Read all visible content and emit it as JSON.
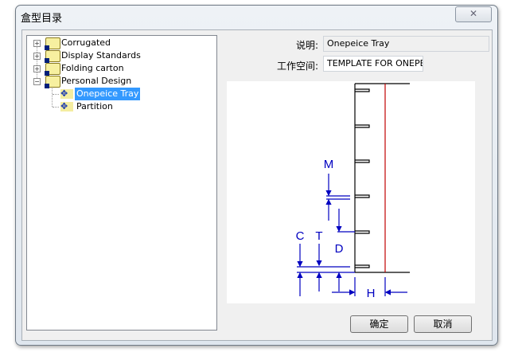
{
  "window": {
    "title": "盒型目录",
    "close_icon": "close-icon"
  },
  "tree": {
    "items": [
      {
        "label": "Corrugated",
        "expanded": false
      },
      {
        "label": "Display Standards",
        "expanded": false
      },
      {
        "label": "Folding carton",
        "expanded": false
      },
      {
        "label": "Personal Design",
        "expanded": true,
        "children": [
          {
            "label": "Onepeice Tray",
            "selected": true
          },
          {
            "label": "Partition"
          }
        ]
      }
    ]
  },
  "form": {
    "desc_label": "说明:",
    "desc_value": "Onepeice Tray",
    "workspace_label": "工作空间:",
    "workspace_value": "TEMPLATE FOR ONEPEIC"
  },
  "drawing": {
    "labels": {
      "m": "M",
      "c": "C",
      "t": "T",
      "d": "D",
      "h": "H"
    },
    "outline_color": "#000000",
    "center_line_color": "#c00000",
    "dimension_color": "#0000c0"
  },
  "buttons": {
    "ok": "确定",
    "cancel": "取消"
  }
}
